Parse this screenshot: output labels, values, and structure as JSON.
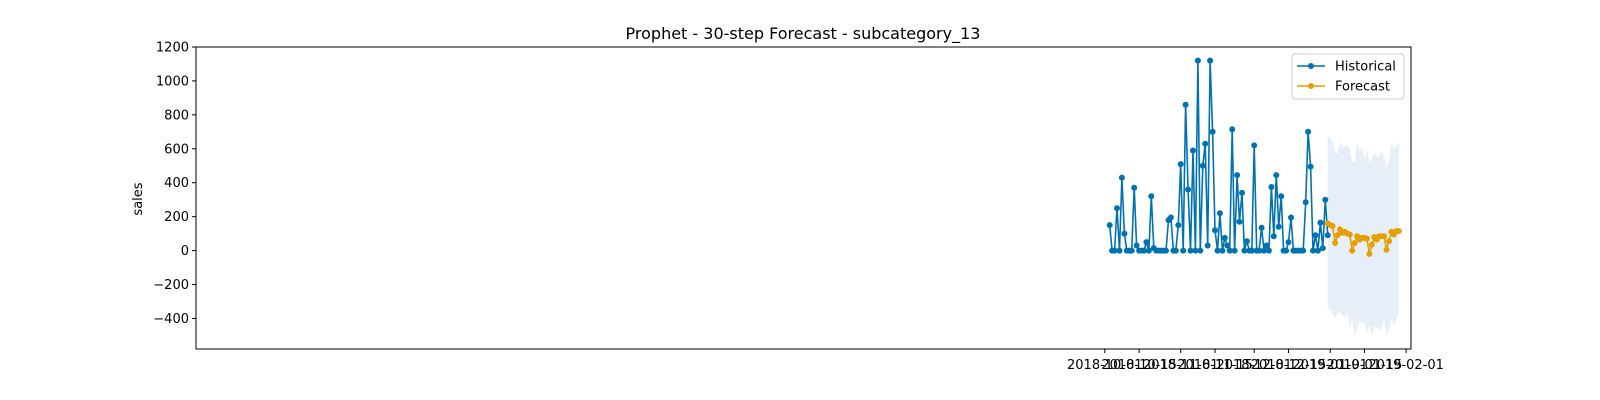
{
  "chart_data": {
    "type": "line",
    "title": "Prophet - 30-step Forecast - subcategory_13",
    "xlabel": "",
    "ylabel": "sales",
    "ylim": [
      -580,
      1200
    ],
    "xlim": [
      "2017-09-25",
      "2019-02-03"
    ],
    "grid": false,
    "legend_position": "top-right",
    "yticks": [
      -400,
      -200,
      0,
      200,
      400,
      600,
      800,
      1000,
      1200
    ],
    "xticks": [
      {
        "date": "2018-10-01",
        "label": "2018-10-01"
      },
      {
        "date": "2018-10-15",
        "label": "2018-10-15"
      },
      {
        "date": "2018-11-01",
        "label": "2018-11-01"
      },
      {
        "date": "2018-11-15",
        "label": "2018-11-15"
      },
      {
        "date": "2018-12-01",
        "label": "2018-12-01"
      },
      {
        "date": "2018-12-15",
        "label": "2018-12-15"
      },
      {
        "date": "2019-01-01",
        "label": "2019-01-01"
      },
      {
        "date": "2019-01-15",
        "label": "2019-01-15"
      },
      {
        "date": "2019-02-01",
        "label": "2019-02-01"
      }
    ],
    "series": [
      {
        "name": "Historical",
        "color": "#0072b2",
        "start_date": "2018-10-03",
        "values": [
          150,
          0,
          0,
          250,
          0,
          430,
          100,
          0,
          0,
          0,
          370,
          30,
          0,
          0,
          0,
          50,
          0,
          320,
          15,
          0,
          0,
          0,
          0,
          0,
          180,
          195,
          0,
          0,
          150,
          510,
          0,
          860,
          360,
          0,
          590,
          0,
          1120,
          0,
          500,
          630,
          30,
          1120,
          700,
          120,
          0,
          220,
          0,
          75,
          30,
          0,
          715,
          0,
          445,
          170,
          340,
          0,
          55,
          0,
          0,
          620,
          0,
          0,
          135,
          0,
          30,
          0,
          375,
          85,
          445,
          140,
          320,
          0,
          0,
          50,
          195,
          0,
          0,
          0,
          0,
          0,
          285,
          700,
          495,
          0,
          90,
          0,
          165,
          15,
          300,
          90
        ]
      },
      {
        "name": "Forecast",
        "color": "#e69f00",
        "start_date": "2018-12-31",
        "values": [
          160,
          150,
          145,
          45,
          90,
          125,
          105,
          110,
          100,
          95,
          0,
          45,
          85,
          65,
          75,
          75,
          70,
          -20,
          35,
          80,
          65,
          85,
          85,
          85,
          5,
          55,
          110,
          95,
          115,
          115
        ]
      }
    ],
    "interval": {
      "color": "#dce8f4",
      "upper": [
        675,
        660,
        640,
        580,
        570,
        645,
        610,
        610,
        620,
        600,
        525,
        525,
        640,
        575,
        610,
        540,
        595,
        520,
        535,
        580,
        550,
        560,
        580,
        555,
        490,
        530,
        630,
        600,
        615,
        645
      ],
      "lower": [
        -340,
        -345,
        -370,
        -400,
        -370,
        -360,
        -385,
        -395,
        -375,
        -455,
        -400,
        -510,
        -455,
        -410,
        -430,
        -420,
        -485,
        -440,
        -500,
        -450,
        -455,
        -470,
        -455,
        -400,
        -505,
        -465,
        -400,
        -445,
        -400,
        -385
      ]
    }
  }
}
